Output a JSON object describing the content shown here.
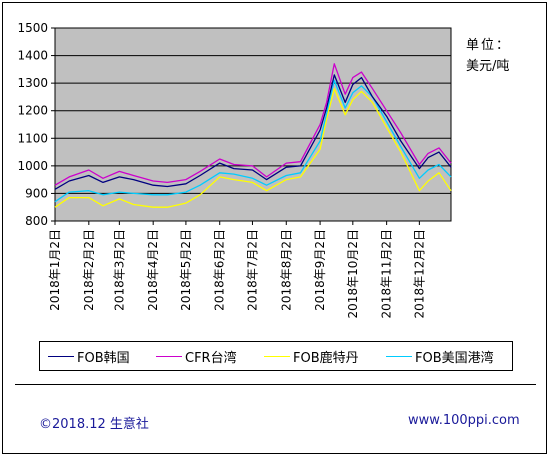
{
  "unit": {
    "label": "单位：",
    "value": "美元/吨"
  },
  "footer": {
    "left": "©2018.12 生意社",
    "right": "www.100ppi.com"
  },
  "colors": {
    "plot_bg": "#c0c0c0",
    "grid": "#000000"
  },
  "chart_data": {
    "type": "line",
    "title": "",
    "xlabel": "",
    "ylabel": "",
    "ylim": [
      800,
      1500
    ],
    "yticks": [
      800,
      900,
      1000,
      1100,
      1200,
      1300,
      1400,
      1500
    ],
    "grid": true,
    "legend_position": "bottom",
    "x_ticks": [
      "2018年1月2日",
      "2018年2月2日",
      "2018年3月2日",
      "2018年4月2日",
      "2018年5月2日",
      "2018年6月2日",
      "2018年7月2日",
      "2018年8月2日",
      "2018年9月2日",
      "2018年10月2日",
      "2018年11月2日",
      "2018年12月2日"
    ],
    "x": [
      "2018-01-02",
      "2018-01-15",
      "2018-02-02",
      "2018-02-15",
      "2018-03-02",
      "2018-03-15",
      "2018-04-02",
      "2018-04-15",
      "2018-05-02",
      "2018-05-15",
      "2018-06-02",
      "2018-06-15",
      "2018-07-02",
      "2018-07-15",
      "2018-08-02",
      "2018-08-15",
      "2018-09-02",
      "2018-09-08",
      "2018-09-15",
      "2018-09-25",
      "2018-10-02",
      "2018-10-10",
      "2018-10-20",
      "2018-11-02",
      "2018-11-15",
      "2018-12-02",
      "2018-12-10",
      "2018-12-20",
      "2018-12-31"
    ],
    "series": [
      {
        "name": "FOB韩国",
        "color": "#000080",
        "values": [
          915,
          945,
          965,
          940,
          960,
          950,
          930,
          925,
          935,
          965,
          1010,
          990,
          985,
          950,
          995,
          1000,
          1130,
          1210,
          1330,
          1230,
          1295,
          1320,
          1250,
          1180,
          1090,
          990,
          1030,
          1050,
          995
        ]
      },
      {
        "name": "CFR台湾",
        "color": "#cc00cc",
        "values": [
          930,
          960,
          985,
          955,
          980,
          965,
          945,
          940,
          950,
          980,
          1025,
          1005,
          1000,
          960,
          1010,
          1015,
          1150,
          1230,
          1370,
          1260,
          1320,
          1340,
          1280,
          1200,
          1120,
          1005,
          1045,
          1065,
          1010
        ]
      },
      {
        "name": "FOB鹿特丹",
        "color": "#ffff00",
        "values": [
          850,
          885,
          885,
          855,
          880,
          860,
          850,
          850,
          865,
          895,
          960,
          950,
          940,
          910,
          950,
          960,
          1060,
          1170,
          1280,
          1185,
          1240,
          1270,
          1230,
          1140,
          1050,
          910,
          945,
          975,
          910
        ]
      },
      {
        "name": "FOB美国港湾",
        "color": "#00ccff",
        "values": [
          870,
          905,
          910,
          895,
          905,
          900,
          895,
          895,
          905,
          930,
          975,
          970,
          955,
          930,
          965,
          975,
          1090,
          1190,
          1310,
          1210,
          1265,
          1290,
          1250,
          1160,
          1070,
          955,
          985,
          1005,
          960
        ]
      }
    ]
  }
}
